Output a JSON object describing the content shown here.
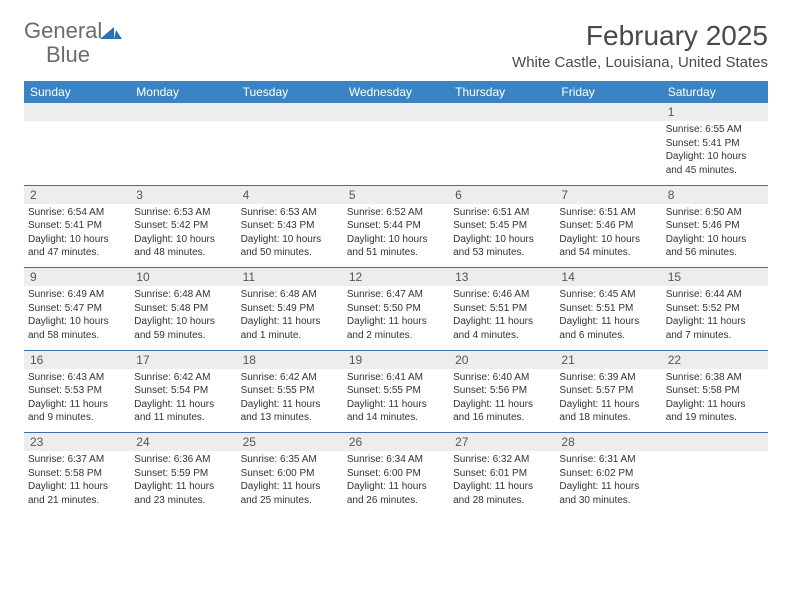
{
  "brand": {
    "word1": "General",
    "word2": "Blue",
    "text_color": "#6b6b6b",
    "accent_color": "#2e6fb8"
  },
  "title": "February 2025",
  "location": "White Castle, Louisiana, United States",
  "colors": {
    "header_bg": "#3a84c6",
    "header_text": "#ffffff",
    "daynum_bg": "#ededed",
    "daynum_text": "#555555",
    "body_text": "#333333",
    "week_border": "#3a6fa8",
    "page_bg": "#ffffff"
  },
  "fonts": {
    "title_size": 28,
    "location_size": 15,
    "header_size": 12,
    "daynum_size": 12,
    "body_size": 10
  },
  "days_of_week": [
    "Sunday",
    "Monday",
    "Tuesday",
    "Wednesday",
    "Thursday",
    "Friday",
    "Saturday"
  ],
  "weeks": [
    [
      {
        "n": "",
        "sunrise": "",
        "sunset": "",
        "daylight": ""
      },
      {
        "n": "",
        "sunrise": "",
        "sunset": "",
        "daylight": ""
      },
      {
        "n": "",
        "sunrise": "",
        "sunset": "",
        "daylight": ""
      },
      {
        "n": "",
        "sunrise": "",
        "sunset": "",
        "daylight": ""
      },
      {
        "n": "",
        "sunrise": "",
        "sunset": "",
        "daylight": ""
      },
      {
        "n": "",
        "sunrise": "",
        "sunset": "",
        "daylight": ""
      },
      {
        "n": "1",
        "sunrise": "Sunrise: 6:55 AM",
        "sunset": "Sunset: 5:41 PM",
        "daylight": "Daylight: 10 hours and 45 minutes."
      }
    ],
    [
      {
        "n": "2",
        "sunrise": "Sunrise: 6:54 AM",
        "sunset": "Sunset: 5:41 PM",
        "daylight": "Daylight: 10 hours and 47 minutes."
      },
      {
        "n": "3",
        "sunrise": "Sunrise: 6:53 AM",
        "sunset": "Sunset: 5:42 PM",
        "daylight": "Daylight: 10 hours and 48 minutes."
      },
      {
        "n": "4",
        "sunrise": "Sunrise: 6:53 AM",
        "sunset": "Sunset: 5:43 PM",
        "daylight": "Daylight: 10 hours and 50 minutes."
      },
      {
        "n": "5",
        "sunrise": "Sunrise: 6:52 AM",
        "sunset": "Sunset: 5:44 PM",
        "daylight": "Daylight: 10 hours and 51 minutes."
      },
      {
        "n": "6",
        "sunrise": "Sunrise: 6:51 AM",
        "sunset": "Sunset: 5:45 PM",
        "daylight": "Daylight: 10 hours and 53 minutes."
      },
      {
        "n": "7",
        "sunrise": "Sunrise: 6:51 AM",
        "sunset": "Sunset: 5:46 PM",
        "daylight": "Daylight: 10 hours and 54 minutes."
      },
      {
        "n": "8",
        "sunrise": "Sunrise: 6:50 AM",
        "sunset": "Sunset: 5:46 PM",
        "daylight": "Daylight: 10 hours and 56 minutes."
      }
    ],
    [
      {
        "n": "9",
        "sunrise": "Sunrise: 6:49 AM",
        "sunset": "Sunset: 5:47 PM",
        "daylight": "Daylight: 10 hours and 58 minutes."
      },
      {
        "n": "10",
        "sunrise": "Sunrise: 6:48 AM",
        "sunset": "Sunset: 5:48 PM",
        "daylight": "Daylight: 10 hours and 59 minutes."
      },
      {
        "n": "11",
        "sunrise": "Sunrise: 6:48 AM",
        "sunset": "Sunset: 5:49 PM",
        "daylight": "Daylight: 11 hours and 1 minute."
      },
      {
        "n": "12",
        "sunrise": "Sunrise: 6:47 AM",
        "sunset": "Sunset: 5:50 PM",
        "daylight": "Daylight: 11 hours and 2 minutes."
      },
      {
        "n": "13",
        "sunrise": "Sunrise: 6:46 AM",
        "sunset": "Sunset: 5:51 PM",
        "daylight": "Daylight: 11 hours and 4 minutes."
      },
      {
        "n": "14",
        "sunrise": "Sunrise: 6:45 AM",
        "sunset": "Sunset: 5:51 PM",
        "daylight": "Daylight: 11 hours and 6 minutes."
      },
      {
        "n": "15",
        "sunrise": "Sunrise: 6:44 AM",
        "sunset": "Sunset: 5:52 PM",
        "daylight": "Daylight: 11 hours and 7 minutes."
      }
    ],
    [
      {
        "n": "16",
        "sunrise": "Sunrise: 6:43 AM",
        "sunset": "Sunset: 5:53 PM",
        "daylight": "Daylight: 11 hours and 9 minutes."
      },
      {
        "n": "17",
        "sunrise": "Sunrise: 6:42 AM",
        "sunset": "Sunset: 5:54 PM",
        "daylight": "Daylight: 11 hours and 11 minutes."
      },
      {
        "n": "18",
        "sunrise": "Sunrise: 6:42 AM",
        "sunset": "Sunset: 5:55 PM",
        "daylight": "Daylight: 11 hours and 13 minutes."
      },
      {
        "n": "19",
        "sunrise": "Sunrise: 6:41 AM",
        "sunset": "Sunset: 5:55 PM",
        "daylight": "Daylight: 11 hours and 14 minutes."
      },
      {
        "n": "20",
        "sunrise": "Sunrise: 6:40 AM",
        "sunset": "Sunset: 5:56 PM",
        "daylight": "Daylight: 11 hours and 16 minutes."
      },
      {
        "n": "21",
        "sunrise": "Sunrise: 6:39 AM",
        "sunset": "Sunset: 5:57 PM",
        "daylight": "Daylight: 11 hours and 18 minutes."
      },
      {
        "n": "22",
        "sunrise": "Sunrise: 6:38 AM",
        "sunset": "Sunset: 5:58 PM",
        "daylight": "Daylight: 11 hours and 19 minutes."
      }
    ],
    [
      {
        "n": "23",
        "sunrise": "Sunrise: 6:37 AM",
        "sunset": "Sunset: 5:58 PM",
        "daylight": "Daylight: 11 hours and 21 minutes."
      },
      {
        "n": "24",
        "sunrise": "Sunrise: 6:36 AM",
        "sunset": "Sunset: 5:59 PM",
        "daylight": "Daylight: 11 hours and 23 minutes."
      },
      {
        "n": "25",
        "sunrise": "Sunrise: 6:35 AM",
        "sunset": "Sunset: 6:00 PM",
        "daylight": "Daylight: 11 hours and 25 minutes."
      },
      {
        "n": "26",
        "sunrise": "Sunrise: 6:34 AM",
        "sunset": "Sunset: 6:00 PM",
        "daylight": "Daylight: 11 hours and 26 minutes."
      },
      {
        "n": "27",
        "sunrise": "Sunrise: 6:32 AM",
        "sunset": "Sunset: 6:01 PM",
        "daylight": "Daylight: 11 hours and 28 minutes."
      },
      {
        "n": "28",
        "sunrise": "Sunrise: 6:31 AM",
        "sunset": "Sunset: 6:02 PM",
        "daylight": "Daylight: 11 hours and 30 minutes."
      },
      {
        "n": "",
        "sunrise": "",
        "sunset": "",
        "daylight": ""
      }
    ]
  ]
}
